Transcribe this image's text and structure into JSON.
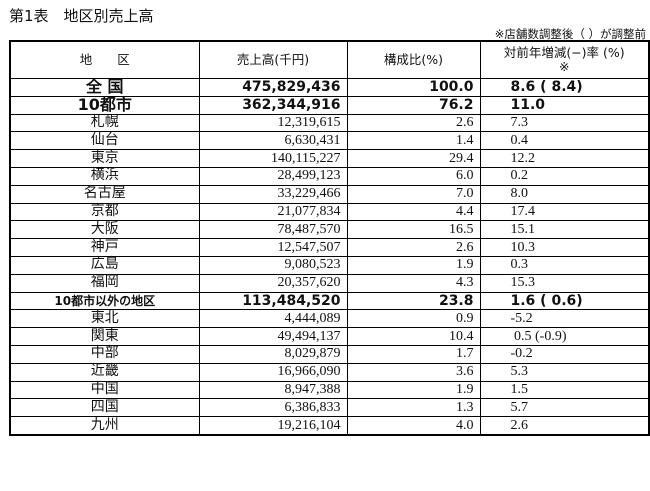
{
  "title": "第1表　地区別売上高",
  "note": "※店舗数調整後（ ）が調整前",
  "headers": [
    "地　　区",
    "売上高(千円)",
    "構成比(%)",
    "対前年増減(−)率 (%)\n※"
  ],
  "rows": [
    {
      "area": "全 国",
      "sales": "475,829,436",
      "share": "100.0",
      "growth": "8.6 ( 8.4)",
      "bold": true
    },
    {
      "area": "10都市",
      "sales": "362,344,916",
      "share": "76.2",
      "growth": "11.0",
      "bold": true
    },
    {
      "area": "札幌",
      "sales": "12,319,615",
      "share": "2.6",
      "growth": "7.3"
    },
    {
      "area": "仙台",
      "sales": "6,630,431",
      "share": "1.4",
      "growth": "0.4"
    },
    {
      "area": "東京",
      "sales": "140,115,227",
      "share": "29.4",
      "growth": "12.2"
    },
    {
      "area": "横浜",
      "sales": "28,499,123",
      "share": "6.0",
      "growth": "0.2"
    },
    {
      "area": "名古屋",
      "sales": "33,229,466",
      "share": "7.0",
      "growth": "8.0"
    },
    {
      "area": "京都",
      "sales": "21,077,834",
      "share": "4.4",
      "growth": "17.4"
    },
    {
      "area": "大阪",
      "sales": "78,487,570",
      "share": "16.5",
      "growth": "15.1"
    },
    {
      "area": "神戸",
      "sales": "12,547,507",
      "share": "2.6",
      "growth": "10.3"
    },
    {
      "area": "広島",
      "sales": "9,080,523",
      "share": "1.9",
      "growth": "0.3"
    },
    {
      "area": "福岡",
      "sales": "20,357,620",
      "share": "4.3",
      "growth": "15.3"
    },
    {
      "area": "10都市以外の地区",
      "sales": "113,484,520",
      "share": "23.8",
      "growth": "1.6 ( 0.6)",
      "bold": true,
      "small": true
    },
    {
      "area": "東北",
      "sales": "4,444,089",
      "share": "0.9",
      "growth": "-5.2"
    },
    {
      "area": "関東",
      "sales": "49,494,137",
      "share": "10.4",
      "growth": " 0.5 (-0.9)"
    },
    {
      "area": "中部",
      "sales": "8,029,879",
      "share": "1.7",
      "growth": "-0.2"
    },
    {
      "area": "近畿",
      "sales": "16,966,090",
      "share": "3.6",
      "growth": "5.3"
    },
    {
      "area": "中国",
      "sales": "8,947,388",
      "share": "1.9",
      "growth": "1.5"
    },
    {
      "area": "四国",
      "sales": "6,386,833",
      "share": "1.3",
      "growth": "5.7"
    },
    {
      "area": "九州",
      "sales": "19,216,104",
      "share": "4.0",
      "growth": "2.6"
    }
  ]
}
